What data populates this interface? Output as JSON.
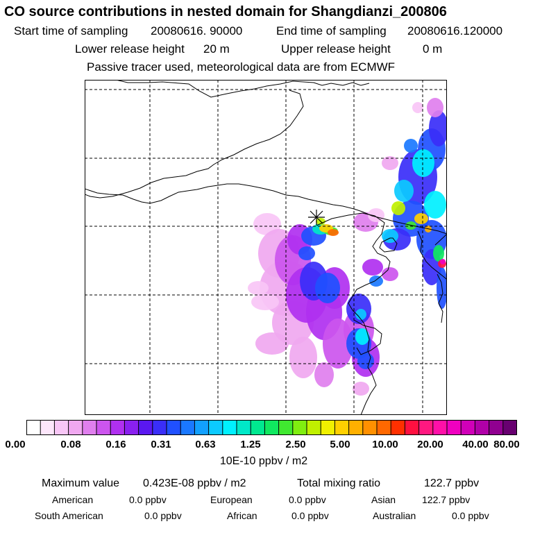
{
  "header": {
    "title": "CO  source contributions in nested domain for Shangdianzi_200806",
    "start_label": "Start time of sampling",
    "start_value": "20080616. 90000",
    "end_label": "End time of sampling",
    "end_value": "20080616.120000",
    "lower_label": "Lower release height",
    "lower_value": "20 m",
    "upper_label": "Upper release height",
    "upper_value": "0 m",
    "note": "Passive tracer used, meteorological data are from ECMWF"
  },
  "colors": {
    "scale": [
      "#ffffff",
      "#fde6fb",
      "#f8c6f6",
      "#f0a8f0",
      "#e07fee",
      "#cc55ee",
      "#b030f0",
      "#8a20f0",
      "#5a18f0",
      "#3a2ef8",
      "#2050ff",
      "#1a78ff",
      "#12a0ff",
      "#0ccaff",
      "#00f0ff",
      "#00e8c8",
      "#00e890",
      "#10e860",
      "#40e830",
      "#80ee10",
      "#c0f000",
      "#f0f000",
      "#ffd000",
      "#ffb000",
      "#ff9000",
      "#ff6800",
      "#ff3000",
      "#ff1040",
      "#ff1880",
      "#ff10a8",
      "#f000c0",
      "#d000b8",
      "#b000a8",
      "#900090",
      "#680070"
    ],
    "coast": "#000000",
    "grid": "#000000"
  },
  "colorbar": {
    "ticks": [
      "0.00",
      "0.08",
      "0.16",
      "0.31",
      "0.63",
      "1.25",
      "2.50",
      "5.00",
      "10.00",
      "20.00",
      "40.00",
      "80.00"
    ],
    "unit": "10E-10 ppbv / m2"
  },
  "summary": {
    "max_label": "Maximum value",
    "max_value": "0.423E-08 ppbv / m2",
    "total_label": "Total mixing ratio",
    "total_value": "122.7 ppbv"
  },
  "regions": [
    {
      "name": "American",
      "value": "0.0 ppbv"
    },
    {
      "name": "European",
      "value": "0.0 ppbv"
    },
    {
      "name": "Asian",
      "value": "122.7 ppbv"
    },
    {
      "name": "South American",
      "value": "0.0 ppbv"
    },
    {
      "name": "African",
      "value": "0.0 ppbv"
    },
    {
      "name": "Australian",
      "value": "0.0 ppbv"
    }
  ]
}
